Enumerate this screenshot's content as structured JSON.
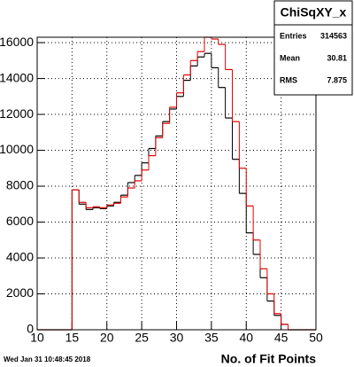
{
  "chart_data": {
    "type": "histogram",
    "bins": [
      10,
      11,
      12,
      13,
      14,
      15,
      16,
      17,
      18,
      19,
      20,
      21,
      22,
      23,
      24,
      25,
      26,
      27,
      28,
      29,
      30,
      31,
      32,
      33,
      34,
      35,
      36,
      37,
      38,
      39,
      40,
      41,
      42,
      43,
      44,
      45,
      46,
      47,
      48,
      49,
      50
    ],
    "series": [
      {
        "color": "#000000",
        "values": [
          0,
          0,
          0,
          0,
          0,
          7800,
          7000,
          6700,
          6800,
          6750,
          6900,
          7100,
          7500,
          8200,
          8600,
          9300,
          10100,
          10800,
          11600,
          12300,
          13000,
          13900,
          14700,
          15200,
          15400,
          14600,
          13500,
          11800,
          9500,
          7600,
          5400,
          4200,
          2900,
          1600,
          800,
          300,
          0,
          0,
          0,
          0
        ]
      },
      {
        "color": "#e00000",
        "values": [
          0,
          0,
          0,
          0,
          0,
          7800,
          7100,
          6800,
          6850,
          6800,
          6950,
          7050,
          7400,
          7900,
          8300,
          8900,
          9700,
          10700,
          11500,
          12400,
          13200,
          14200,
          15000,
          15500,
          16300,
          16200,
          15900,
          14500,
          11600,
          9000,
          6900,
          5000,
          3400,
          2000,
          900,
          300,
          0,
          0,
          0,
          0
        ]
      }
    ],
    "xlim": [
      10,
      50
    ],
    "xticks": [
      10,
      15,
      20,
      25,
      30,
      35,
      40,
      45,
      50
    ],
    "ylim": [
      0,
      16300
    ],
    "yticks": [
      0,
      2000,
      4000,
      6000,
      8000,
      10000,
      12000,
      14000,
      16000
    ],
    "grid": true,
    "xlabel": "No. of Fit Points",
    "timestamp": "Wed Jan 31 10:48:45 2018",
    "stats": {
      "title": "ChiSqXY_x",
      "rows": [
        [
          "Entries",
          "314563"
        ],
        [
          "Mean",
          "30.81"
        ],
        [
          "RMS",
          "7.875"
        ]
      ]
    }
  }
}
